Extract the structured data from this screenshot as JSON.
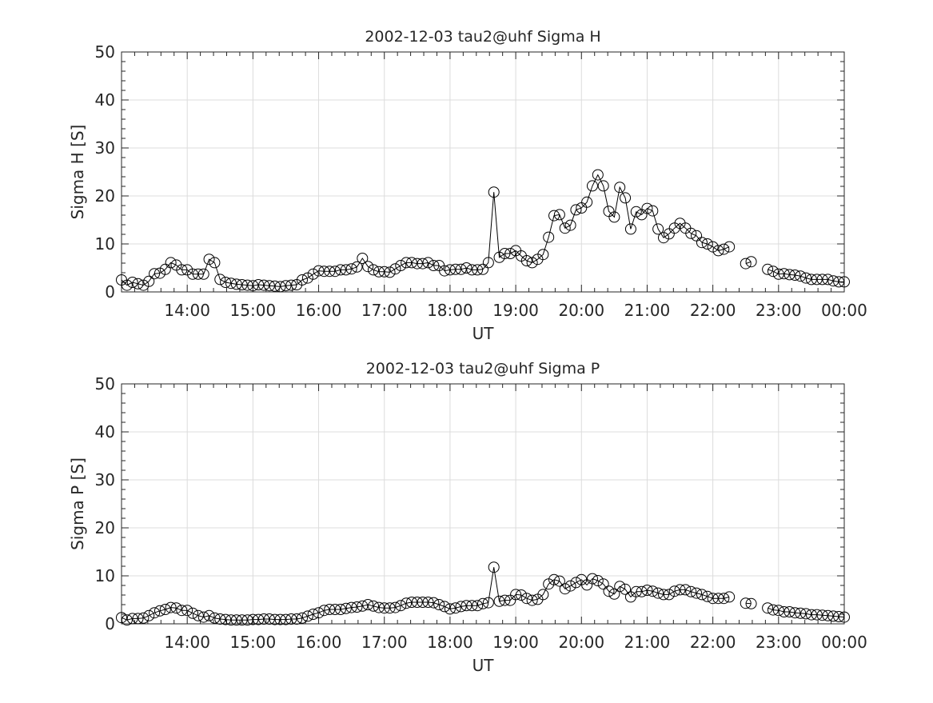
{
  "chart_data": [
    {
      "type": "line",
      "title": "2002-12-03  tau2@uhf Sigma H",
      "xlabel": "UT",
      "ylabel": "Sigma H [S]",
      "xlim_hours": [
        13,
        24
      ],
      "ylim": [
        0,
        50
      ],
      "x_start_hours": 13,
      "interval_minutes": 5,
      "grid": true,
      "marker": "open-circle",
      "x_ticks": [
        "14:00",
        "15:00",
        "16:00",
        "17:00",
        "18:00",
        "19:00",
        "20:00",
        "21:00",
        "22:00",
        "23:00",
        "00:00"
      ],
      "y_ticks": [
        "0",
        "10",
        "20",
        "30",
        "40",
        "50"
      ],
      "values": [
        2.5,
        1.4,
        2.0,
        1.7,
        1.4,
        2.2,
        3.8,
        3.9,
        4.7,
        6.1,
        5.6,
        4.6,
        4.6,
        3.7,
        3.7,
        3.7,
        6.8,
        6.1,
        2.6,
        2.0,
        1.8,
        1.6,
        1.5,
        1.4,
        1.3,
        1.5,
        1.4,
        1.3,
        1.2,
        1.1,
        1.3,
        1.4,
        1.5,
        2.5,
        2.9,
        3.7,
        4.4,
        4.3,
        4.3,
        4.3,
        4.6,
        4.6,
        4.8,
        5.2,
        7.0,
        5.3,
        4.6,
        4.2,
        4.2,
        4.1,
        4.8,
        5.5,
        6.1,
        6.1,
        5.9,
        5.9,
        6.1,
        5.5,
        5.5,
        4.4,
        4.6,
        4.7,
        4.7,
        5.0,
        4.6,
        4.6,
        4.7,
        6.1,
        20.8,
        7.2,
        8.0,
        8.0,
        8.6,
        7.5,
        6.5,
        6.1,
        6.8,
        7.8,
        11.4,
        15.9,
        16.1,
        13.3,
        13.9,
        17.1,
        17.5,
        18.7,
        22.1,
        24.4,
        22.1,
        16.8,
        15.6,
        21.8,
        19.6,
        13.1,
        16.7,
        16.1,
        17.4,
        16.9,
        13.1,
        11.3,
        12.1,
        13.3,
        14.3,
        13.3,
        12.2,
        11.7,
        10.3,
        10.0,
        9.4,
        8.6,
        8.9,
        9.4,
        null,
        null,
        5.9,
        6.3,
        null,
        null,
        4.7,
        4.3,
        3.7,
        3.8,
        3.6,
        3.5,
        3.3,
        2.9,
        2.6,
        2.6,
        2.6,
        2.6,
        2.3,
        2.1,
        2.1
      ]
    },
    {
      "type": "line",
      "title": "2002-12-03  tau2@uhf Sigma P",
      "xlabel": "UT",
      "ylabel": "Sigma P [S]",
      "xlim_hours": [
        13,
        24
      ],
      "ylim": [
        0,
        50
      ],
      "x_start_hours": 13,
      "interval_minutes": 5,
      "grid": true,
      "marker": "open-circle",
      "x_ticks": [
        "14:00",
        "15:00",
        "16:00",
        "17:00",
        "18:00",
        "19:00",
        "20:00",
        "21:00",
        "22:00",
        "23:00",
        "00:00"
      ],
      "y_ticks": [
        "0",
        "10",
        "20",
        "30",
        "40",
        "50"
      ],
      "values": [
        1.3,
        0.8,
        1.1,
        1.1,
        1.2,
        1.7,
        2.3,
        2.7,
        3.0,
        3.4,
        3.3,
        2.8,
        2.8,
        2.2,
        1.7,
        1.4,
        1.7,
        1.2,
        1.0,
        0.9,
        0.8,
        0.8,
        0.8,
        0.8,
        0.9,
        0.9,
        1.0,
        1.0,
        0.9,
        0.9,
        0.9,
        1.0,
        1.0,
        1.2,
        1.6,
        2.0,
        2.3,
        2.8,
        3.0,
        3.0,
        3.0,
        3.2,
        3.4,
        3.5,
        3.7,
        4.0,
        3.7,
        3.4,
        3.3,
        3.3,
        3.4,
        3.8,
        4.3,
        4.5,
        4.5,
        4.5,
        4.5,
        4.4,
        4.0,
        3.6,
        3.1,
        3.3,
        3.6,
        3.8,
        3.8,
        3.8,
        4.2,
        4.4,
        11.8,
        4.7,
        4.9,
        4.9,
        6.1,
        6.0,
        5.3,
        4.9,
        5.1,
        6.1,
        8.3,
        9.2,
        8.9,
        7.3,
        7.9,
        8.6,
        9.2,
        8.1,
        9.4,
        9.0,
        8.3,
        6.8,
        6.2,
        7.8,
        7.2,
        5.6,
        6.7,
        6.7,
        7.0,
        6.8,
        6.4,
        6.1,
        6.1,
        6.8,
        7.1,
        7.1,
        6.7,
        6.4,
        6.1,
        5.7,
        5.3,
        5.3,
        5.3,
        5.6,
        null,
        null,
        4.3,
        4.2,
        null,
        null,
        3.3,
        2.9,
        2.8,
        2.5,
        2.5,
        2.3,
        2.2,
        2.1,
        1.9,
        1.9,
        1.8,
        1.7,
        1.6,
        1.5,
        1.4
      ]
    }
  ]
}
